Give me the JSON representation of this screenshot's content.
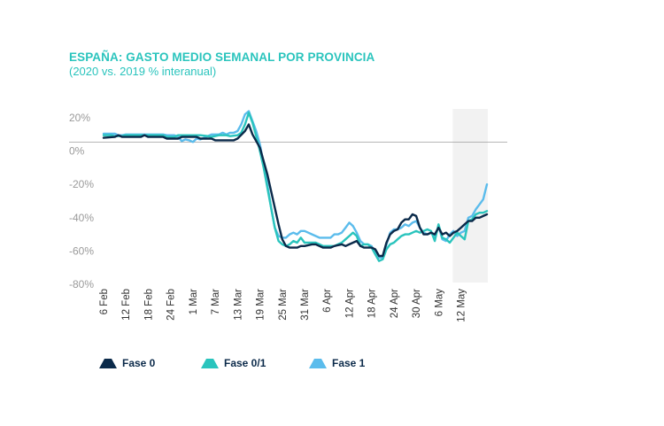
{
  "chart_data": {
    "type": "line",
    "title": "ESPAÑA: GASTO MEDIO SEMANAL POR PROVINCIA",
    "subtitle": "(2020 vs. 2019 % interanual)",
    "ylim": [
      -80,
      20
    ],
    "yticks": [
      20,
      0,
      -20,
      -40,
      -60,
      -80
    ],
    "ytick_labels": [
      "20%",
      "0%",
      "-20%",
      "-40%",
      "-60%",
      "-80%"
    ],
    "x_dates": [
      "6 Feb",
      "12 Feb",
      "18 Feb",
      "24 Feb",
      "1 Mar",
      "7 Mar",
      "13 Mar",
      "19 Mar",
      "25 Mar",
      "31 Mar",
      "6 Apr",
      "12 Apr",
      "18 Apr",
      "24 Apr",
      "30 Apr",
      "6 May",
      "12 May"
    ],
    "x_range_days": [
      0,
      103
    ],
    "shaded_region_days": [
      95,
      103
    ],
    "zero_line": true,
    "grid": false,
    "legend_position": "bottom",
    "series": [
      {
        "name": "Fase 0",
        "color": "#0b2a4a",
        "points": [
          [
            0,
            8
          ],
          [
            3,
            8.5
          ],
          [
            4,
            9.5
          ],
          [
            5,
            8.5
          ],
          [
            10,
            8.5
          ],
          [
            11,
            9.5
          ],
          [
            12,
            8.5
          ],
          [
            16,
            8.5
          ],
          [
            17,
            7.5
          ],
          [
            20,
            7.5
          ],
          [
            21,
            8.5
          ],
          [
            25,
            8.5
          ],
          [
            26,
            7.5
          ],
          [
            29,
            7.5
          ],
          [
            30,
            6.5
          ],
          [
            35,
            6.5
          ],
          [
            36,
            7.5
          ],
          [
            38,
            12
          ],
          [
            39,
            16
          ],
          [
            40,
            10
          ],
          [
            42,
            2
          ],
          [
            43,
            -6
          ],
          [
            44,
            -14
          ],
          [
            45,
            -24
          ],
          [
            46,
            -34
          ],
          [
            47,
            -44
          ],
          [
            48,
            -53
          ],
          [
            49,
            -57
          ],
          [
            50,
            -58
          ],
          [
            51,
            -58
          ],
          [
            52,
            -58
          ],
          [
            53,
            -57
          ],
          [
            54,
            -57
          ],
          [
            56,
            -56
          ],
          [
            57,
            -56
          ],
          [
            58,
            -57
          ],
          [
            59,
            -58
          ],
          [
            61,
            -58
          ],
          [
            62,
            -57
          ],
          [
            64,
            -56
          ],
          [
            65,
            -57
          ],
          [
            66,
            -56
          ],
          [
            67,
            -55
          ],
          [
            68,
            -54
          ],
          [
            69,
            -57
          ],
          [
            70,
            -58
          ],
          [
            72,
            -58
          ],
          [
            73,
            -59
          ],
          [
            74,
            -63
          ],
          [
            75,
            -63
          ],
          [
            76,
            -55
          ],
          [
            77,
            -50
          ],
          [
            78,
            -48
          ],
          [
            79,
            -47
          ],
          [
            80,
            -43
          ],
          [
            81,
            -41
          ],
          [
            82,
            -41
          ],
          [
            83,
            -38
          ],
          [
            84,
            -39
          ],
          [
            85,
            -46
          ],
          [
            86,
            -50
          ],
          [
            87,
            -50
          ],
          [
            88,
            -49
          ],
          [
            89,
            -50
          ],
          [
            90,
            -46
          ],
          [
            91,
            -50
          ],
          [
            92,
            -49
          ],
          [
            93,
            -51
          ],
          [
            94,
            -49
          ],
          [
            95,
            -48
          ],
          [
            96,
            -46
          ],
          [
            97,
            -44
          ],
          [
            98,
            -42
          ],
          [
            99,
            -42
          ],
          [
            100,
            -40
          ],
          [
            101,
            -40
          ],
          [
            102,
            -39
          ],
          [
            103,
            -38
          ]
        ]
      },
      {
        "name": "Fase 0/1",
        "color": "#2ac4bd",
        "points": [
          [
            0,
            9.5
          ],
          [
            2,
            9.5
          ],
          [
            3,
            9
          ],
          [
            5,
            9
          ],
          [
            6,
            9.5
          ],
          [
            16,
            9.5
          ],
          [
            17,
            8.5
          ],
          [
            19,
            8.5
          ],
          [
            20,
            9.5
          ],
          [
            26,
            9.5
          ],
          [
            28,
            9
          ],
          [
            29,
            8.5
          ],
          [
            31,
            9.5
          ],
          [
            33,
            9.5
          ],
          [
            34,
            9
          ],
          [
            36,
            9.5
          ],
          [
            37,
            11
          ],
          [
            38,
            16
          ],
          [
            39,
            23
          ],
          [
            40,
            17
          ],
          [
            41,
            9
          ],
          [
            42,
            0
          ],
          [
            43,
            -10
          ],
          [
            44,
            -22
          ],
          [
            45,
            -34
          ],
          [
            46,
            -46
          ],
          [
            47,
            -54
          ],
          [
            48,
            -56
          ],
          [
            49,
            -57
          ],
          [
            50,
            -56
          ],
          [
            51,
            -54
          ],
          [
            52,
            -55
          ],
          [
            53,
            -52
          ],
          [
            54,
            -55
          ],
          [
            55,
            -55
          ],
          [
            57,
            -55
          ],
          [
            58,
            -56
          ],
          [
            59,
            -57
          ],
          [
            62,
            -57
          ],
          [
            63,
            -56
          ],
          [
            64,
            -55
          ],
          [
            65,
            -53
          ],
          [
            66,
            -51
          ],
          [
            67,
            -49
          ],
          [
            68,
            -51
          ],
          [
            69,
            -57
          ],
          [
            70,
            -56
          ],
          [
            71,
            -56
          ],
          [
            72,
            -58
          ],
          [
            73,
            -62
          ],
          [
            74,
            -66
          ],
          [
            75,
            -65
          ],
          [
            76,
            -59
          ],
          [
            77,
            -56
          ],
          [
            78,
            -55
          ],
          [
            79,
            -53
          ],
          [
            80,
            -51
          ],
          [
            81,
            -50
          ],
          [
            82,
            -50
          ],
          [
            83,
            -49
          ],
          [
            84,
            -48
          ],
          [
            85,
            -49
          ],
          [
            86,
            -48
          ],
          [
            87,
            -47
          ],
          [
            88,
            -48
          ],
          [
            89,
            -54
          ],
          [
            90,
            -44
          ],
          [
            91,
            -52
          ],
          [
            92,
            -53
          ],
          [
            93,
            -55
          ],
          [
            94,
            -52
          ],
          [
            95,
            -49
          ],
          [
            96,
            -51
          ],
          [
            97,
            -53
          ],
          [
            98,
            -42
          ],
          [
            99,
            -41
          ],
          [
            100,
            -38
          ],
          [
            101,
            -37
          ],
          [
            102,
            -37
          ],
          [
            103,
            -36
          ]
        ]
      },
      {
        "name": "Fase 1",
        "color": "#5bbcec",
        "points": [
          [
            0,
            10.5
          ],
          [
            3,
            10.5
          ],
          [
            4,
            9.5
          ],
          [
            5,
            9.5
          ],
          [
            6,
            10
          ],
          [
            16,
            10
          ],
          [
            17,
            9.5
          ],
          [
            19,
            9.5
          ],
          [
            20,
            8.5
          ],
          [
            21,
            6
          ],
          [
            22,
            7
          ],
          [
            23,
            6.5
          ],
          [
            24,
            5.5
          ],
          [
            25,
            7.5
          ],
          [
            26,
            7
          ],
          [
            27,
            8
          ],
          [
            28,
            9
          ],
          [
            29,
            10
          ],
          [
            31,
            10
          ],
          [
            32,
            11
          ],
          [
            33,
            10
          ],
          [
            34,
            11
          ],
          [
            35,
            11
          ],
          [
            36,
            12
          ],
          [
            37,
            16
          ],
          [
            38,
            22
          ],
          [
            39,
            24
          ],
          [
            40,
            18
          ],
          [
            41,
            12
          ],
          [
            42,
            4
          ],
          [
            43,
            -8
          ],
          [
            44,
            -20
          ],
          [
            45,
            -34
          ],
          [
            46,
            -46
          ],
          [
            47,
            -51
          ],
          [
            48,
            -52
          ],
          [
            49,
            -52
          ],
          [
            50,
            -50
          ],
          [
            51,
            -49
          ],
          [
            52,
            -50
          ],
          [
            53,
            -48
          ],
          [
            54,
            -48
          ],
          [
            55,
            -49
          ],
          [
            56,
            -50
          ],
          [
            57,
            -51
          ],
          [
            58,
            -52
          ],
          [
            59,
            -52
          ],
          [
            61,
            -52
          ],
          [
            62,
            -50
          ],
          [
            63,
            -50
          ],
          [
            64,
            -49
          ],
          [
            65,
            -46
          ],
          [
            66,
            -43
          ],
          [
            67,
            -45
          ],
          [
            68,
            -49
          ],
          [
            69,
            -54
          ],
          [
            70,
            -56
          ],
          [
            71,
            -56
          ],
          [
            72,
            -57
          ],
          [
            73,
            -61
          ],
          [
            74,
            -64
          ],
          [
            75,
            -64
          ],
          [
            76,
            -56
          ],
          [
            77,
            -49
          ],
          [
            78,
            -47
          ],
          [
            79,
            -47
          ],
          [
            80,
            -46
          ],
          [
            81,
            -44
          ],
          [
            82,
            -45
          ],
          [
            83,
            -43
          ],
          [
            84,
            -42
          ],
          [
            85,
            -46
          ],
          [
            86,
            -49
          ],
          [
            87,
            -50
          ],
          [
            88,
            -49
          ],
          [
            89,
            -52
          ],
          [
            90,
            -45
          ],
          [
            91,
            -53
          ],
          [
            92,
            -54
          ],
          [
            93,
            -50
          ],
          [
            94,
            -48
          ],
          [
            95,
            -51
          ],
          [
            96,
            -49
          ],
          [
            97,
            -48
          ],
          [
            98,
            -40
          ],
          [
            99,
            -39
          ],
          [
            100,
            -35
          ],
          [
            101,
            -32
          ],
          [
            102,
            -29
          ],
          [
            103,
            -20
          ]
        ]
      }
    ]
  }
}
